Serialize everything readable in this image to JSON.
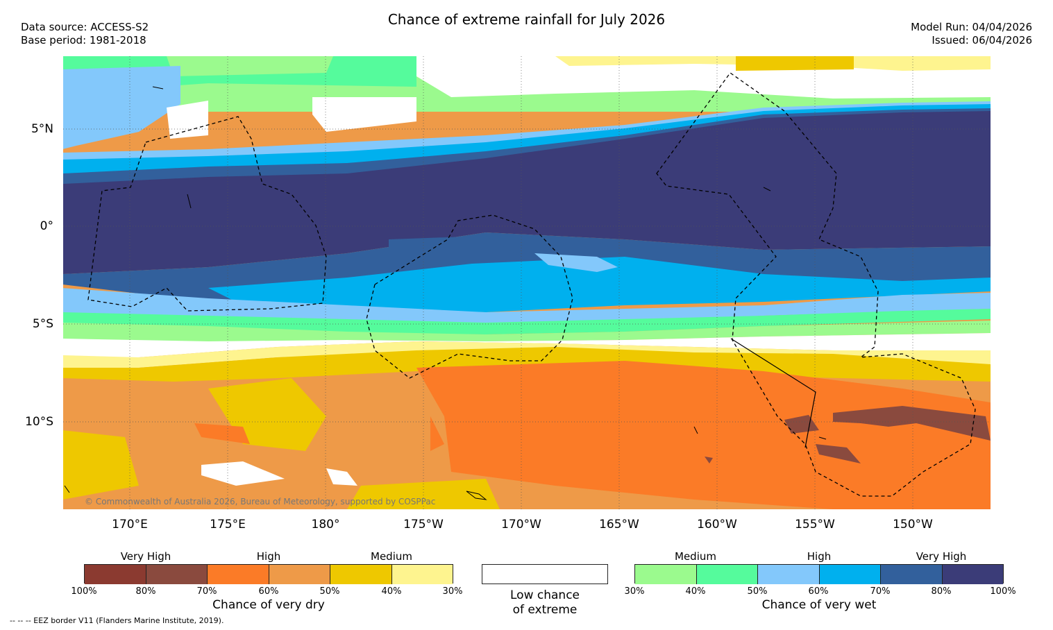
{
  "title": "Chance of extreme rainfall for July 2026",
  "meta": {
    "data_source": "Data source: ACCESS-S2",
    "base_period": "Base period: 1981-2018",
    "model_run": "Model Run: 04/04/2026",
    "issued": "Issued: 06/04/2026"
  },
  "map": {
    "lat_labels": [
      "5°N",
      "0°",
      "5°S",
      "10°S"
    ],
    "lon_labels": [
      "170°E",
      "175°E",
      "180°",
      "175°W",
      "170°W",
      "165°W",
      "160°W",
      "155°W",
      "150°W"
    ],
    "copyright": "© Commonwealth of Australia 2026, Bureau of Meteorology, supported by COSPPac"
  },
  "legend": {
    "dry": {
      "categories": [
        "Very High",
        "High",
        "Medium"
      ],
      "ticks": [
        "100%",
        "80%",
        "70%",
        "60%",
        "50%",
        "40%",
        "30%"
      ],
      "colors": [
        "#8b3a30",
        "#8a4a3e",
        "#fb7b27",
        "#ee9a48",
        "#eec800",
        "#fef48f"
      ],
      "label": "Chance of very dry"
    },
    "neutral": {
      "label_line1": "Low chance",
      "label_line2": "of extreme",
      "color": "#ffffff"
    },
    "wet": {
      "categories": [
        "Medium",
        "High",
        "Very High"
      ],
      "ticks": [
        "30%",
        "40%",
        "50%",
        "60%",
        "70%",
        "80%",
        "100%"
      ],
      "colors": [
        "#9bfa8e",
        "#55fb9c",
        "#83c8fb",
        "#00b0ee",
        "#32609c",
        "#3b3c78"
      ],
      "label": "Chance of very wet"
    }
  },
  "eez_note": "--  --  -- EEZ border V11 (Flanders Marine Institute, 2019)."
}
